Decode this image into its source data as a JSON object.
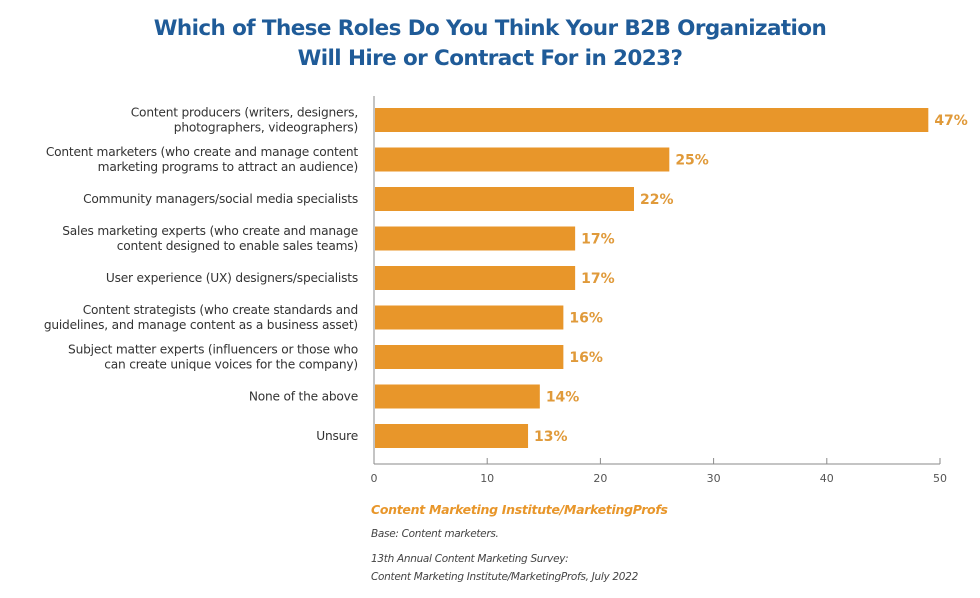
{
  "chart_data": {
    "type": "bar",
    "orientation": "horizontal",
    "title": "Which of These Roles Do You Think Your B2B Organization Will Hire or Contract For in 2023?",
    "title_lines": [
      "Which of These Roles Do You Think Your B2B Organization",
      "Will Hire or Contract For in 2023?"
    ],
    "categories": [
      [
        "Content producers  (writers, designers,",
        "photographers, videographers)"
      ],
      [
        "Content marketers  (who create and manage content",
        "marketing programs to attract an audience)"
      ],
      [
        "Community managers/social media specialists"
      ],
      [
        "Sales marketing experts (who create and manage",
        "content designed to enable sales teams)"
      ],
      [
        "User experience (UX) designers/specialists"
      ],
      [
        "Content strategists (who create standards and",
        "guidelines, and manage content as a business asset)"
      ],
      [
        "Subject matter experts (influencers or those who",
        "can create unique voices for the company)"
      ],
      [
        "None of the above"
      ],
      [
        "Unsure"
      ]
    ],
    "values": [
      47,
      25,
      22,
      17,
      17,
      16,
      16,
      14,
      13
    ],
    "value_labels": [
      "47%",
      "25%",
      "22%",
      "17%",
      "17%",
      "16%",
      "16%",
      "14%",
      "13%"
    ],
    "xlabel": "",
    "ylabel": "",
    "xlim": [
      0,
      50
    ],
    "xticks": [
      0,
      10,
      20,
      30,
      40,
      50
    ],
    "grid": false,
    "legend": "none",
    "colors": {
      "bar": "#e8962a",
      "value_label": "#e09a3a",
      "title": "#1f5b98",
      "axis": "#888888"
    }
  },
  "footer": {
    "source": "Content Marketing Institute/MarketingProfs",
    "base": "Base: Content marketers.",
    "survey_line1": "13th Annual Content Marketing Survey:",
    "survey_line2": "Content Marketing Institute/MarketingProfs, July 2022"
  }
}
